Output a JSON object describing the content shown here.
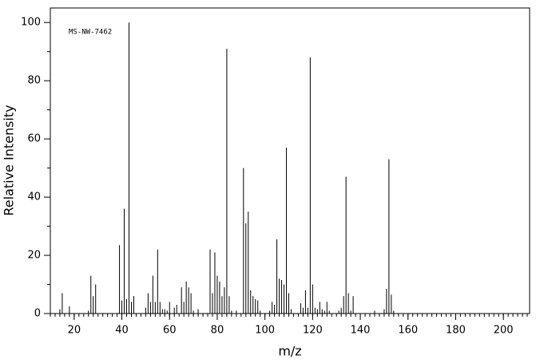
{
  "chart_data": {
    "type": "stick",
    "annotation": "MS-NW-7462",
    "x_label": "m/z",
    "y_label": "Relative Intensity",
    "x": [
      14,
      15,
      18,
      26,
      27,
      28,
      29,
      39,
      40,
      41,
      42,
      43,
      44,
      45,
      50,
      51,
      52,
      53,
      54,
      55,
      56,
      57,
      58,
      59,
      60,
      62,
      63,
      65,
      66,
      67,
      68,
      69,
      70,
      72,
      77,
      78,
      79,
      80,
      81,
      82,
      83,
      84,
      85,
      86,
      88,
      91,
      92,
      93,
      94,
      95,
      96,
      97,
      98,
      102,
      103,
      104,
      105,
      106,
      107,
      108,
      109,
      110,
      111,
      115,
      116,
      117,
      118,
      119,
      120,
      121,
      122,
      123,
      124,
      125,
      126,
      127,
      131,
      132,
      133,
      134,
      135,
      136,
      137,
      146,
      150,
      151,
      152,
      153,
      154
    ],
    "values": [
      1.5,
      7,
      2.5,
      1,
      13,
      6,
      10,
      23.5,
      4.5,
      36,
      5,
      100,
      4,
      6,
      2,
      7,
      4,
      13,
      4,
      22,
      4,
      1.5,
      1.5,
      1,
      4,
      2,
      3,
      9,
      4,
      11,
      9,
      7,
      1,
      1.5,
      22,
      7,
      21,
      13,
      11,
      6,
      9,
      91,
      6,
      1,
      1,
      50,
      31,
      35,
      8,
      6,
      5,
      4.5,
      1,
      1,
      4,
      3,
      25.5,
      12,
      11.5,
      10,
      57,
      7,
      1.5,
      3.5,
      2,
      8,
      2,
      88,
      10,
      2,
      1.5,
      4,
      1.5,
      1,
      4,
      1,
      1,
      2,
      6,
      47,
      7,
      1,
      6,
      1,
      1.5,
      8.5,
      53,
      6.5,
      1
    ],
    "color": "#000000",
    "xlim": [
      10,
      211
    ],
    "ylim": [
      0,
      105
    ],
    "xticks": [
      20,
      40,
      60,
      80,
      100,
      120,
      140,
      160,
      180,
      200
    ],
    "yticks": [
      0,
      20,
      40,
      60,
      80,
      100
    ]
  }
}
